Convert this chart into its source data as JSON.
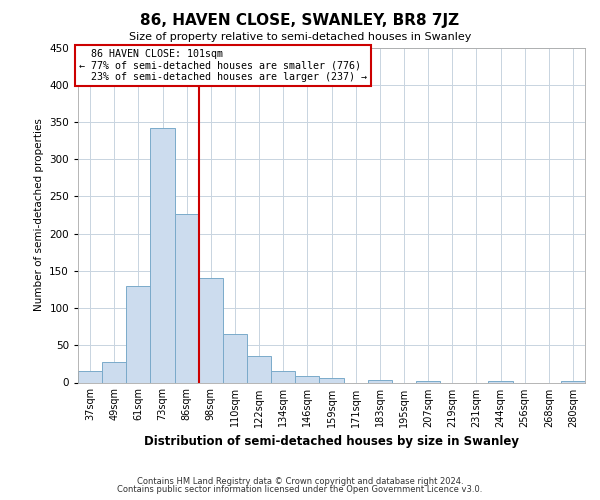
{
  "title": "86, HAVEN CLOSE, SWANLEY, BR8 7JZ",
  "subtitle": "Size of property relative to semi-detached houses in Swanley",
  "xlabel": "Distribution of semi-detached houses by size in Swanley",
  "ylabel": "Number of semi-detached properties",
  "bin_labels": [
    "37sqm",
    "49sqm",
    "61sqm",
    "73sqm",
    "86sqm",
    "98sqm",
    "110sqm",
    "122sqm",
    "134sqm",
    "146sqm",
    "159sqm",
    "171sqm",
    "183sqm",
    "195sqm",
    "207sqm",
    "219sqm",
    "231sqm",
    "244sqm",
    "256sqm",
    "268sqm",
    "280sqm"
  ],
  "bar_heights": [
    15,
    28,
    130,
    342,
    226,
    140,
    65,
    35,
    15,
    9,
    6,
    0,
    3,
    0,
    2,
    0,
    0,
    2,
    0,
    0,
    2
  ],
  "bar_color": "#ccdcee",
  "bar_edgecolor": "#7aaaca",
  "property_line_bin": 5,
  "property_label": "86 HAVEN CLOSE: 101sqm",
  "pct_smaller": 77,
  "count_smaller": 776,
  "pct_larger": 23,
  "count_larger": 237,
  "line_color": "#cc0000",
  "annotation_box_edgecolor": "#cc0000",
  "ylim": [
    0,
    450
  ],
  "yticks": [
    0,
    50,
    100,
    150,
    200,
    250,
    300,
    350,
    400,
    450
  ],
  "bg_color": "#ffffff",
  "plot_bg_color": "#ffffff",
  "grid_color": "#c8d4e0",
  "footer1": "Contains HM Land Registry data © Crown copyright and database right 2024.",
  "footer2": "Contains public sector information licensed under the Open Government Licence v3.0."
}
